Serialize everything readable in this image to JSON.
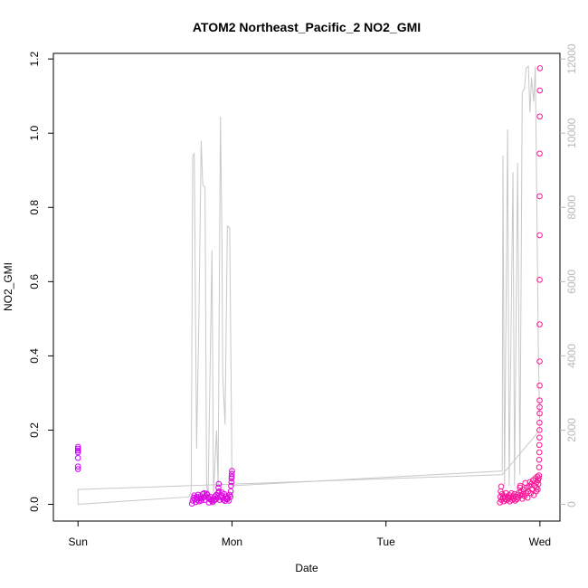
{
  "chart_data": {
    "type": "scatter",
    "title": "ATOM2 Northeast_Pacific_2 NO2_GMI",
    "xlabel": "Date",
    "ylabel": "NO2_GMI",
    "x_ticks": [
      {
        "label": "Sun",
        "day": 0
      },
      {
        "label": "Mon",
        "day": 1
      },
      {
        "label": "Tue",
        "day": 2
      },
      {
        "label": "Wed",
        "day": 3
      }
    ],
    "xlim_days": [
      -0.16,
      3.13
    ],
    "ylim": [
      -0.045,
      1.215
    ],
    "y_ticks": [
      "0.0",
      "0.2",
      "0.4",
      "0.6",
      "0.8",
      "1.0",
      "1.2"
    ],
    "y2lim": [
      -450,
      12150
    ],
    "y2_ticks": [
      "0",
      "2000",
      "4000",
      "6000",
      "8000",
      "10000",
      "12000"
    ],
    "series": [
      {
        "type": "scatter",
        "axis": "left",
        "color_start": "#cc00ff",
        "color_end": "#ff1493",
        "points": [
          [
            0.0,
            0.095
          ],
          [
            0.0,
            0.102
          ],
          [
            0.0,
            0.125
          ],
          [
            0.0,
            0.14
          ],
          [
            0.0,
            0.145
          ],
          [
            0.0,
            0.15
          ],
          [
            0.0,
            0.155
          ],
          [
            0.74,
            0.002
          ],
          [
            0.745,
            0.01
          ],
          [
            0.75,
            0.018
          ],
          [
            0.755,
            0.024
          ],
          [
            0.76,
            0.014
          ],
          [
            0.765,
            0.006
          ],
          [
            0.77,
            0.02
          ],
          [
            0.775,
            0.012
          ],
          [
            0.78,
            0.026
          ],
          [
            0.785,
            0.008
          ],
          [
            0.79,
            0.017
          ],
          [
            0.795,
            0.022
          ],
          [
            0.8,
            0.01
          ],
          [
            0.805,
            0.015
          ],
          [
            0.81,
            0.028
          ],
          [
            0.815,
            0.019
          ],
          [
            0.82,
            0.03
          ],
          [
            0.825,
            0.012
          ],
          [
            0.83,
            0.022
          ],
          [
            0.835,
            0.029
          ],
          [
            0.84,
            0.026
          ],
          [
            0.845,
            0.018
          ],
          [
            0.85,
            0.005
          ],
          [
            0.855,
            0.014
          ],
          [
            0.86,
            0.02
          ],
          [
            0.865,
            0.012
          ],
          [
            0.87,
            0.009
          ],
          [
            0.875,
            0.006
          ],
          [
            0.88,
            0.016
          ],
          [
            0.885,
            0.011
          ],
          [
            0.89,
            0.022
          ],
          [
            0.895,
            0.014
          ],
          [
            0.9,
            0.026
          ],
          [
            0.905,
            0.018
          ],
          [
            0.91,
            0.03
          ],
          [
            0.912,
            0.045
          ],
          [
            0.914,
            0.055
          ],
          [
            0.915,
            0.035
          ],
          [
            0.92,
            0.012
          ],
          [
            0.925,
            0.02
          ],
          [
            0.93,
            0.025
          ],
          [
            0.935,
            0.032
          ],
          [
            0.94,
            0.018
          ],
          [
            0.945,
            0.012
          ],
          [
            0.95,
            0.028
          ],
          [
            0.955,
            0.009
          ],
          [
            0.96,
            0.015
          ],
          [
            0.965,
            0.022
          ],
          [
            0.97,
            0.014
          ],
          [
            0.975,
            0.018
          ],
          [
            0.98,
            0.01
          ],
          [
            0.985,
            0.026
          ],
          [
            0.99,
            0.02
          ],
          [
            0.992,
            0.035
          ],
          [
            0.994,
            0.05
          ],
          [
            0.996,
            0.06
          ],
          [
            0.997,
            0.07
          ],
          [
            0.998,
            0.075
          ],
          [
            0.999,
            0.082
          ],
          [
            1.0,
            0.09
          ],
          [
            2.74,
            0.005
          ],
          [
            2.742,
            0.02
          ],
          [
            2.745,
            0.035
          ],
          [
            2.748,
            0.048
          ],
          [
            2.75,
            0.012
          ],
          [
            2.755,
            0.028
          ],
          [
            2.76,
            0.018
          ],
          [
            2.765,
            0.008
          ],
          [
            2.77,
            0.022
          ],
          [
            2.775,
            0.014
          ],
          [
            2.78,
            0.03
          ],
          [
            2.785,
            0.011
          ],
          [
            2.79,
            0.02
          ],
          [
            2.795,
            0.016
          ],
          [
            2.8,
            0.025
          ],
          [
            2.805,
            0.008
          ],
          [
            2.81,
            0.018
          ],
          [
            2.815,
            0.03
          ],
          [
            2.82,
            0.012
          ],
          [
            2.825,
            0.022
          ],
          [
            2.83,
            0.015
          ],
          [
            2.835,
            0.028
          ],
          [
            2.84,
            0.01
          ],
          [
            2.845,
            0.02
          ],
          [
            2.85,
            0.014
          ],
          [
            2.855,
            0.026
          ],
          [
            2.86,
            0.018
          ],
          [
            2.865,
            0.032
          ],
          [
            2.87,
            0.045
          ],
          [
            2.872,
            0.05
          ],
          [
            2.875,
            0.025
          ],
          [
            2.88,
            0.035
          ],
          [
            2.885,
            0.015
          ],
          [
            2.89,
            0.028
          ],
          [
            2.895,
            0.04
          ],
          [
            2.9,
            0.022
          ],
          [
            2.905,
            0.058
          ],
          [
            2.91,
            0.03
          ],
          [
            2.915,
            0.045
          ],
          [
            2.92,
            0.018
          ],
          [
            2.925,
            0.035
          ],
          [
            2.93,
            0.05
          ],
          [
            2.935,
            0.06
          ],
          [
            2.94,
            0.03
          ],
          [
            2.945,
            0.055
          ],
          [
            2.95,
            0.04
          ],
          [
            2.955,
            0.065
          ],
          [
            2.96,
            0.025
          ],
          [
            2.965,
            0.05
          ],
          [
            2.97,
            0.07
          ],
          [
            2.975,
            0.035
          ],
          [
            2.978,
            0.045
          ],
          [
            2.98,
            0.06
          ],
          [
            2.983,
            0.075
          ],
          [
            2.985,
            0.04
          ],
          [
            2.988,
            0.065
          ],
          [
            2.99,
            0.055
          ],
          [
            2.992,
            0.07
          ],
          [
            2.994,
            0.078
          ],
          [
            2.995,
            0.1
          ],
          [
            2.995,
            0.12
          ],
          [
            2.996,
            0.14
          ],
          [
            2.996,
            0.16
          ],
          [
            2.997,
            0.18
          ],
          [
            2.997,
            0.2
          ],
          [
            2.997,
            0.22
          ],
          [
            2.998,
            0.245
          ],
          [
            2.998,
            0.262
          ],
          [
            2.998,
            0.28
          ],
          [
            2.998,
            0.32
          ],
          [
            2.998,
            0.385
          ],
          [
            2.998,
            0.485
          ],
          [
            2.998,
            0.605
          ],
          [
            2.998,
            0.725
          ],
          [
            2.998,
            0.83
          ],
          [
            2.998,
            0.945
          ],
          [
            2.999,
            1.045
          ],
          [
            2.999,
            1.115
          ],
          [
            3.0,
            1.175
          ]
        ]
      },
      {
        "type": "line",
        "axis": "right",
        "color": "#c8c8c8",
        "points": [
          [
            0.0,
            0
          ],
          [
            0.72,
            200
          ],
          [
            0.735,
            350
          ],
          [
            0.745,
            9400
          ],
          [
            0.755,
            9450
          ],
          [
            0.77,
            1500
          ],
          [
            0.785,
            5000
          ],
          [
            0.8,
            9800
          ],
          [
            0.81,
            8600
          ],
          [
            0.825,
            8550
          ],
          [
            0.835,
            500
          ],
          [
            0.845,
            300
          ],
          [
            0.87,
            6850
          ],
          [
            0.88,
            300
          ],
          [
            0.9,
            2000
          ],
          [
            0.91,
            500
          ],
          [
            0.925,
            10450
          ],
          [
            0.935,
            7000
          ],
          [
            0.94,
            3500
          ],
          [
            0.955,
            2150
          ],
          [
            0.97,
            7500
          ],
          [
            0.985,
            7450
          ],
          [
            0.995,
            3000
          ],
          [
            1.0,
            500
          ],
          [
            2.755,
            900
          ],
          [
            2.76,
            9400
          ],
          [
            2.77,
            500
          ],
          [
            2.79,
            10100
          ],
          [
            2.8,
            500
          ],
          [
            2.825,
            8950
          ],
          [
            2.835,
            500
          ],
          [
            2.855,
            9200
          ],
          [
            2.87,
            800
          ],
          [
            2.885,
            11100
          ],
          [
            2.9,
            11200
          ],
          [
            2.91,
            11750
          ],
          [
            2.925,
            11800
          ],
          [
            2.935,
            10550
          ],
          [
            2.945,
            11500
          ],
          [
            2.96,
            10850
          ],
          [
            2.97,
            11800
          ],
          [
            2.98,
            8000
          ],
          [
            2.99,
            4000
          ],
          [
            3.0,
            2000
          ]
        ],
        "return_segment": [
          [
            3.0,
            2000
          ],
          [
            2.755,
            800
          ],
          [
            0.0,
            400
          ],
          [
            0.0,
            0
          ]
        ]
      }
    ]
  }
}
